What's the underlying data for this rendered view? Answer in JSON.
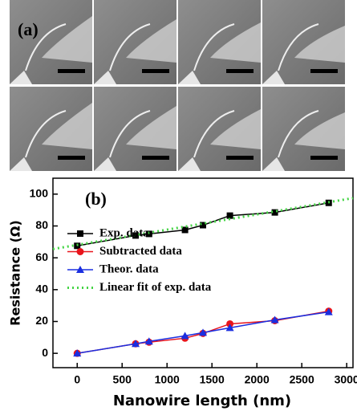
{
  "panel_a": {
    "label": "(a)"
  },
  "chart_data": {
    "type": "line",
    "panel_label": "(b)",
    "x_label": "Nanowire length (nm)",
    "y_label": "Resistance (Ω)",
    "xlim": [
      -270,
      3070
    ],
    "ylim": [
      -9,
      110
    ],
    "xticks": [
      0,
      500,
      1000,
      1500,
      2000,
      2500,
      3000
    ],
    "yticks": [
      0,
      20,
      40,
      60,
      80,
      100
    ],
    "legend": "center left",
    "series": [
      {
        "name": "Exp. data",
        "color": "#000000",
        "marker": "square",
        "x": [
          0,
          650,
          800,
          1200,
          1400,
          1700,
          2200,
          2800
        ],
        "values": [
          67.5,
          74,
          75,
          77.5,
          80.5,
          86.5,
          88.5,
          94.5
        ]
      },
      {
        "name": "Subtracted data",
        "color": "#e8141c",
        "marker": "circle",
        "x": [
          0,
          650,
          800,
          1200,
          1400,
          1700,
          2200,
          2800
        ],
        "values": [
          0,
          6,
          7,
          9.5,
          12.5,
          18.5,
          20.5,
          26.5
        ]
      },
      {
        "name": "Theor. data",
        "color": "#1a2ee0",
        "marker": "triangle",
        "x": [
          0,
          650,
          800,
          1200,
          1400,
          1700,
          2200,
          2800
        ],
        "values": [
          0,
          6,
          7.5,
          11,
          13,
          16,
          21,
          26
        ]
      },
      {
        "name": "Linear fit of exp. data",
        "color": "#44d444",
        "marker": "dotted",
        "x": [
          -270,
          3070
        ],
        "values": [
          65.5,
          97.5
        ]
      }
    ]
  }
}
